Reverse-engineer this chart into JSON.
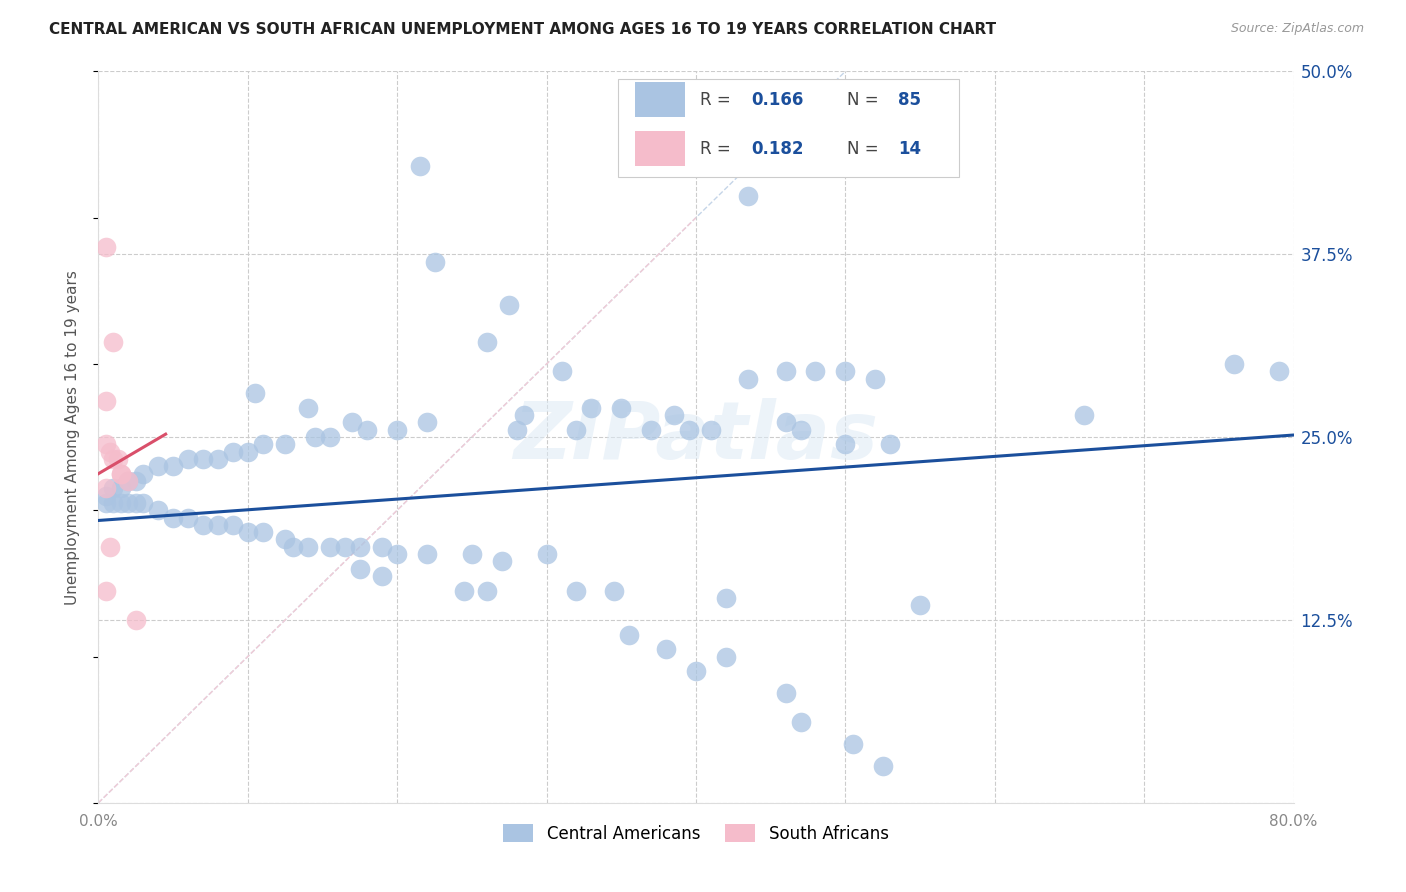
{
  "title": "CENTRAL AMERICAN VS SOUTH AFRICAN UNEMPLOYMENT AMONG AGES 16 TO 19 YEARS CORRELATION CHART",
  "source": "Source: ZipAtlas.com",
  "ylabel": "Unemployment Among Ages 16 to 19 years",
  "xlim": [
    0.0,
    0.8
  ],
  "ylim": [
    0.0,
    0.5
  ],
  "xticks": [
    0.0,
    0.1,
    0.2,
    0.3,
    0.4,
    0.5,
    0.6,
    0.7,
    0.8
  ],
  "xticklabels": [
    "0.0%",
    "",
    "",
    "",
    "",
    "",
    "",
    "",
    "80.0%"
  ],
  "yticks_right": [
    0.0,
    0.125,
    0.25,
    0.375,
    0.5
  ],
  "yticklabels_right": [
    "",
    "12.5%",
    "25.0%",
    "37.5%",
    "50.0%"
  ],
  "blue_color": "#aac4e2",
  "pink_color": "#f5bccb",
  "blue_line_color": "#1b4f9c",
  "pink_line_color": "#d94f6a",
  "blue_dash_color": "#c5d5e8",
  "pink_dash_color": "#f2ccd6",
  "blue_intercept": 0.193,
  "blue_slope": 0.073,
  "pink_intercept": 0.225,
  "pink_slope": 0.6,
  "watermark": "ZIPatlas",
  "blue_points": [
    [
      0.215,
      0.435
    ],
    [
      0.435,
      0.415
    ],
    [
      0.225,
      0.37
    ],
    [
      0.275,
      0.34
    ],
    [
      0.26,
      0.315
    ],
    [
      0.31,
      0.295
    ],
    [
      0.46,
      0.295
    ],
    [
      0.48,
      0.295
    ],
    [
      0.435,
      0.29
    ],
    [
      0.5,
      0.295
    ],
    [
      0.52,
      0.29
    ],
    [
      0.35,
      0.27
    ],
    [
      0.385,
      0.265
    ],
    [
      0.33,
      0.27
    ],
    [
      0.285,
      0.265
    ],
    [
      0.28,
      0.255
    ],
    [
      0.32,
      0.255
    ],
    [
      0.37,
      0.255
    ],
    [
      0.395,
      0.255
    ],
    [
      0.41,
      0.255
    ],
    [
      0.46,
      0.26
    ],
    [
      0.47,
      0.255
    ],
    [
      0.5,
      0.245
    ],
    [
      0.53,
      0.245
    ],
    [
      0.66,
      0.265
    ],
    [
      0.76,
      0.3
    ],
    [
      0.79,
      0.295
    ],
    [
      0.14,
      0.27
    ],
    [
      0.105,
      0.28
    ],
    [
      0.22,
      0.26
    ],
    [
      0.2,
      0.255
    ],
    [
      0.18,
      0.255
    ],
    [
      0.17,
      0.26
    ],
    [
      0.155,
      0.25
    ],
    [
      0.145,
      0.25
    ],
    [
      0.125,
      0.245
    ],
    [
      0.11,
      0.245
    ],
    [
      0.1,
      0.24
    ],
    [
      0.09,
      0.24
    ],
    [
      0.08,
      0.235
    ],
    [
      0.07,
      0.235
    ],
    [
      0.06,
      0.235
    ],
    [
      0.05,
      0.23
    ],
    [
      0.04,
      0.23
    ],
    [
      0.03,
      0.225
    ],
    [
      0.025,
      0.22
    ],
    [
      0.02,
      0.22
    ],
    [
      0.015,
      0.215
    ],
    [
      0.01,
      0.215
    ],
    [
      0.005,
      0.21
    ],
    [
      0.005,
      0.205
    ],
    [
      0.01,
      0.205
    ],
    [
      0.015,
      0.205
    ],
    [
      0.02,
      0.205
    ],
    [
      0.025,
      0.205
    ],
    [
      0.03,
      0.205
    ],
    [
      0.04,
      0.2
    ],
    [
      0.05,
      0.195
    ],
    [
      0.06,
      0.195
    ],
    [
      0.07,
      0.19
    ],
    [
      0.08,
      0.19
    ],
    [
      0.09,
      0.19
    ],
    [
      0.1,
      0.185
    ],
    [
      0.11,
      0.185
    ],
    [
      0.125,
      0.18
    ],
    [
      0.13,
      0.175
    ],
    [
      0.14,
      0.175
    ],
    [
      0.155,
      0.175
    ],
    [
      0.165,
      0.175
    ],
    [
      0.175,
      0.175
    ],
    [
      0.19,
      0.175
    ],
    [
      0.2,
      0.17
    ],
    [
      0.22,
      0.17
    ],
    [
      0.25,
      0.17
    ],
    [
      0.27,
      0.165
    ],
    [
      0.3,
      0.17
    ],
    [
      0.175,
      0.16
    ],
    [
      0.19,
      0.155
    ],
    [
      0.245,
      0.145
    ],
    [
      0.26,
      0.145
    ],
    [
      0.32,
      0.145
    ],
    [
      0.345,
      0.145
    ],
    [
      0.42,
      0.14
    ],
    [
      0.55,
      0.135
    ],
    [
      0.355,
      0.115
    ],
    [
      0.38,
      0.105
    ],
    [
      0.42,
      0.1
    ],
    [
      0.4,
      0.09
    ],
    [
      0.46,
      0.075
    ],
    [
      0.47,
      0.055
    ],
    [
      0.505,
      0.04
    ],
    [
      0.525,
      0.025
    ]
  ],
  "pink_points": [
    [
      0.005,
      0.38
    ],
    [
      0.01,
      0.315
    ],
    [
      0.005,
      0.275
    ],
    [
      0.005,
      0.245
    ],
    [
      0.008,
      0.24
    ],
    [
      0.01,
      0.235
    ],
    [
      0.013,
      0.235
    ],
    [
      0.015,
      0.225
    ],
    [
      0.015,
      0.225
    ],
    [
      0.02,
      0.22
    ],
    [
      0.005,
      0.215
    ],
    [
      0.008,
      0.175
    ],
    [
      0.005,
      0.145
    ],
    [
      0.025,
      0.125
    ]
  ]
}
